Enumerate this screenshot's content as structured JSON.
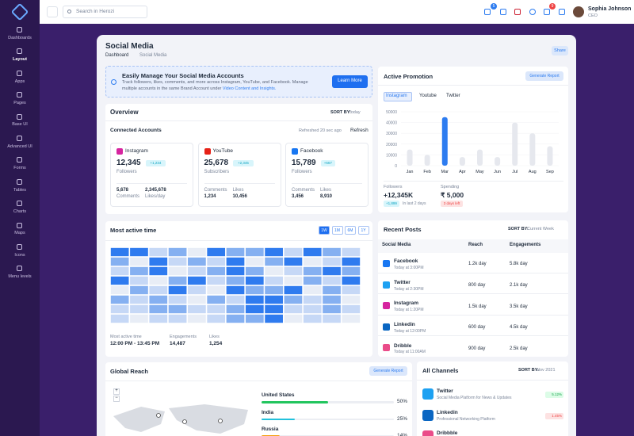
{
  "header": {
    "search_placeholder": "Search in Herozi",
    "cart_badge": "5",
    "bell_badge": "9",
    "user_name": "Sophia Johnson",
    "user_role": "CEO"
  },
  "sidebar": {
    "items": [
      "Dashboards",
      "Layout",
      "Apps",
      "Pages",
      "Base UI",
      "Advanced UI",
      "Forms",
      "Tables",
      "Charts",
      "Maps",
      "Icons",
      "Menu levels"
    ]
  },
  "page": {
    "title": "Social Media",
    "breadcrumb": [
      "Dashboard",
      "Social Media"
    ],
    "share": "Share"
  },
  "banner": {
    "title": "Easily Manage Your Social Media Accounts",
    "text": "Track followers, likes, comments, and more across Instagram, YouTube, and Facebook. Manage multiple accounts in the same Brand Account under",
    "link": "Video Content and Insights.",
    "button": "Learn More"
  },
  "overview": {
    "title": "Overview",
    "sort_label": "SORT BY:",
    "sort_value": "Today",
    "connected": "Connected Accounts",
    "refreshed": "Refreshed 20 sec ago",
    "refresh": "Refresh",
    "accounts": [
      {
        "name": "Instagram",
        "value": "12,345",
        "badge": "+1,234",
        "metric": "Followers",
        "stats": [
          [
            "5,678",
            "Comments"
          ],
          [
            "2,345,678",
            "Likes/day"
          ]
        ]
      },
      {
        "name": "YouTube",
        "value": "25,678",
        "badge": "+2,345",
        "metric": "Subscribers",
        "stats": [
          [
            "Comments",
            "1,234"
          ],
          [
            "Likes",
            "10,456"
          ]
        ]
      },
      {
        "name": "Facebook",
        "value": "15,789",
        "badge": "+567",
        "metric": "Followers",
        "stats": [
          [
            "Comments",
            "3,456"
          ],
          [
            "Likes",
            "8,910"
          ]
        ]
      }
    ]
  },
  "promotion": {
    "title": "Active Promotion",
    "button": "Generate Report",
    "tabs": [
      "Instagram",
      "Youtube",
      "Twitter"
    ],
    "followers_label": "Followers",
    "followers_value": "+12,345K",
    "followers_badge": "+1,899",
    "followers_note": "In last 2 days",
    "spending_label": "Spending",
    "spending_value": "₹ 5,000",
    "spending_badge": "3 days left"
  },
  "activity": {
    "title": "Most active time",
    "tabs": [
      "1W",
      "1M",
      "6M",
      "1Y"
    ],
    "stats": [
      {
        "label": "Most active time",
        "value": "12:00 PM - 13:45 PM"
      },
      {
        "label": "Engagements",
        "value": "14,487"
      },
      {
        "label": "Likes",
        "value": "1,254"
      }
    ]
  },
  "posts": {
    "title": "Recent Posts",
    "sort_label": "SORT BY:",
    "sort_value": "Current Week",
    "columns": [
      "Social Media",
      "Reach",
      "Engagements"
    ],
    "rows": [
      {
        "name": "Facebook",
        "time": "Today at 3:00PM",
        "reach": "1.2k day",
        "engagements": "5.8k day"
      },
      {
        "name": "Twitter",
        "time": "Today at 2:30PM",
        "reach": "800 day",
        "engagements": "2.1k day"
      },
      {
        "name": "Instagram",
        "time": "Today at 1:20PM",
        "reach": "1.5k day",
        "engagements": "3.5k day"
      },
      {
        "name": "Linkedin",
        "time": "Today at 12:00PM",
        "reach": "600 day",
        "engagements": "4.5k day"
      },
      {
        "name": "Dribble",
        "time": "Today at 11:00AM",
        "reach": "900 day",
        "engagements": "2.5k day"
      }
    ]
  },
  "reach": {
    "title": "Global Reach",
    "button": "Generate Report",
    "zoom": [
      "+",
      "−"
    ]
  },
  "channels": {
    "title": "All Channels",
    "sort_label": "SORT BY:",
    "sort_value": "Nov 2021",
    "items": [
      {
        "name": "Twitter",
        "desc": "Social Media Platform for News & Updates",
        "change": "5.12%"
      },
      {
        "name": "Linkedin",
        "desc": "Professional Networking Platform",
        "change": "1.45%"
      },
      {
        "name": "Dribbble"
      }
    ]
  },
  "chart_data": [
    {
      "type": "bar",
      "categories": [
        "Jan",
        "Feb",
        "Mar",
        "Apr",
        "May",
        "Jun",
        "Jul",
        "Aug",
        "Sep"
      ],
      "values": [
        15000,
        10000,
        45000,
        8000,
        15000,
        8000,
        40000,
        30000,
        18000
      ],
      "colors": [
        "#e6e8ee",
        "#e6e8ee",
        "#2d7cf0",
        "#e6e8ee",
        "#e6e8ee",
        "#e6e8ee",
        "#e6e8ee",
        "#e6e8ee",
        "#e6e8ee"
      ],
      "ylim": [
        0,
        50000
      ],
      "yticks": [
        0,
        10000,
        20000,
        30000,
        40000,
        50000
      ]
    },
    {
      "type": "heatmap",
      "colors": [
        "#e8edf6",
        "#c6d8f6",
        "#85b0f1",
        "#2f7bef"
      ],
      "values": [
        [
          3,
          3,
          1,
          2,
          0,
          3,
          2,
          2,
          3,
          1,
          3,
          2,
          1
        ],
        [
          2,
          0,
          3,
          1,
          2,
          1,
          3,
          0,
          2,
          3,
          0,
          1,
          3
        ],
        [
          1,
          2,
          3,
          0,
          1,
          2,
          3,
          2,
          0,
          1,
          2,
          3,
          2
        ],
        [
          3,
          1,
          0,
          2,
          3,
          1,
          2,
          3,
          1,
          0,
          2,
          1,
          3
        ],
        [
          0,
          2,
          1,
          3,
          1,
          0,
          3,
          2,
          2,
          3,
          0,
          2,
          1
        ],
        [
          2,
          1,
          2,
          1,
          0,
          2,
          1,
          3,
          3,
          2,
          1,
          2,
          0
        ],
        [
          1,
          1,
          2,
          2,
          1,
          1,
          2,
          3,
          3,
          1,
          1,
          2,
          1
        ],
        [
          1,
          0,
          1,
          1,
          0,
          1,
          2,
          2,
          3,
          0,
          1,
          1,
          0
        ]
      ]
    },
    {
      "type": "progress",
      "categories": [
        "United States",
        "India",
        "Russia"
      ],
      "values": [
        50,
        25,
        14
      ],
      "value_labels": [
        "50%",
        "25%",
        "14%"
      ],
      "colors": [
        "#22c55e",
        "#22c1dc",
        "#f59e0b"
      ],
      "xlim": [
        0,
        100
      ]
    }
  ]
}
